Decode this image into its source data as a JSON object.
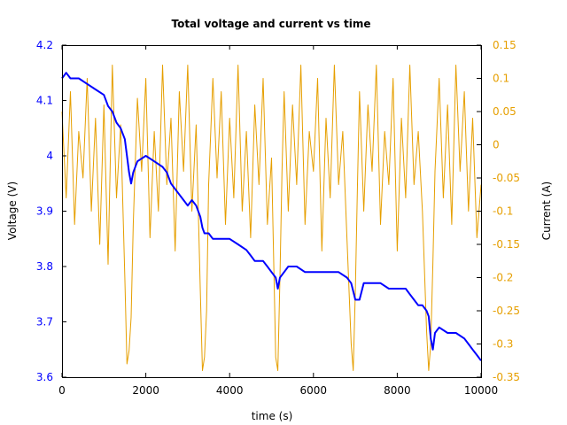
{
  "chart_data": {
    "type": "line",
    "title": "Total voltage and current vs time",
    "xlabel": "time (s)",
    "ylabel": "Voltage (V)",
    "y2label": "Current (A)",
    "xlim": [
      0,
      10000
    ],
    "ylim": [
      3.6,
      4.2
    ],
    "y2lim": [
      -0.35,
      0.15
    ],
    "x_ticks": [
      "0",
      "2000",
      "4000",
      "6000",
      "8000",
      "10000"
    ],
    "y_ticks": [
      "3.6",
      "3.7",
      "3.8",
      "3.9",
      "4",
      "4.1",
      "4.2"
    ],
    "y2_ticks": [
      "-0.35",
      "-0.3",
      "-0.25",
      "-0.2",
      "-0.15",
      "-0.1",
      "-0.05",
      "0",
      "0.05",
      "0.1",
      "0.15"
    ],
    "grid": false,
    "left_axis_color": "#0000ff",
    "right_axis_color": "#e69f00",
    "series": [
      {
        "axis": "left",
        "color": "#0000ff",
        "x": [
          0,
          100,
          200,
          400,
          600,
          800,
          1000,
          1100,
          1200,
          1300,
          1400,
          1500,
          1550,
          1600,
          1650,
          1700,
          1800,
          2000,
          2200,
          2400,
          2500,
          2600,
          2700,
          2800,
          2900,
          3000,
          3100,
          3200,
          3300,
          3350,
          3400,
          3500,
          3600,
          3800,
          4000,
          4200,
          4400,
          4500,
          4600,
          4800,
          4900,
          5000,
          5100,
          5150,
          5200,
          5300,
          5400,
          5600,
          5800,
          6000,
          6200,
          6400,
          6600,
          6800,
          6900,
          7000,
          7100,
          7200,
          7400,
          7600,
          7800,
          8000,
          8200,
          8300,
          8400,
          8500,
          8600,
          8700,
          8750,
          8800,
          8850,
          8900,
          9000,
          9200,
          9400,
          9600,
          9700,
          9800,
          9900,
          10000
        ],
        "y": [
          4.14,
          4.15,
          4.14,
          4.14,
          4.13,
          4.12,
          4.11,
          4.09,
          4.08,
          4.06,
          4.05,
          4.03,
          4.0,
          3.97,
          3.95,
          3.97,
          3.99,
          4.0,
          3.99,
          3.98,
          3.97,
          3.95,
          3.94,
          3.93,
          3.92,
          3.91,
          3.92,
          3.91,
          3.89,
          3.87,
          3.86,
          3.86,
          3.85,
          3.85,
          3.85,
          3.84,
          3.83,
          3.82,
          3.81,
          3.81,
          3.8,
          3.79,
          3.78,
          3.76,
          3.78,
          3.79,
          3.8,
          3.8,
          3.79,
          3.79,
          3.79,
          3.79,
          3.79,
          3.78,
          3.77,
          3.74,
          3.74,
          3.77,
          3.77,
          3.77,
          3.76,
          3.76,
          3.76,
          3.75,
          3.74,
          3.73,
          3.73,
          3.72,
          3.71,
          3.67,
          3.65,
          3.68,
          3.69,
          3.68,
          3.68,
          3.67,
          3.66,
          3.65,
          3.64,
          3.63
        ]
      },
      {
        "axis": "right",
        "color": "#e69f00",
        "x": [
          0,
          100,
          200,
          300,
          400,
          500,
          600,
          700,
          800,
          900,
          1000,
          1100,
          1200,
          1300,
          1400,
          1500,
          1550,
          1600,
          1650,
          1700,
          1800,
          1900,
          2000,
          2100,
          2200,
          2300,
          2400,
          2500,
          2600,
          2700,
          2800,
          2900,
          3000,
          3100,
          3200,
          3300,
          3350,
          3400,
          3450,
          3500,
          3600,
          3700,
          3800,
          3900,
          4000,
          4100,
          4200,
          4300,
          4400,
          4500,
          4600,
          4700,
          4800,
          4900,
          5000,
          5100,
          5150,
          5200,
          5250,
          5300,
          5400,
          5500,
          5600,
          5700,
          5800,
          5900,
          6000,
          6100,
          6200,
          6300,
          6400,
          6500,
          6600,
          6700,
          6800,
          6900,
          6950,
          7000,
          7050,
          7100,
          7200,
          7300,
          7400,
          7500,
          7600,
          7700,
          7800,
          7900,
          8000,
          8100,
          8200,
          8300,
          8400,
          8500,
          8600,
          8700,
          8750,
          8800,
          8850,
          8900,
          9000,
          9100,
          9200,
          9300,
          9400,
          9500,
          9600,
          9700,
          9800,
          9900,
          10000
        ],
        "y": [
          0.05,
          -0.08,
          0.08,
          -0.12,
          0.02,
          -0.05,
          0.1,
          -0.1,
          0.04,
          -0.15,
          0.06,
          -0.18,
          0.12,
          -0.08,
          0.03,
          -0.2,
          -0.33,
          -0.31,
          -0.26,
          -0.12,
          0.07,
          -0.04,
          0.1,
          -0.14,
          0.02,
          -0.1,
          0.12,
          -0.06,
          0.04,
          -0.16,
          0.08,
          -0.04,
          0.12,
          -0.1,
          0.03,
          -0.22,
          -0.34,
          -0.32,
          -0.25,
          -0.06,
          0.1,
          -0.05,
          0.08,
          -0.12,
          0.04,
          -0.08,
          0.12,
          -0.1,
          0.02,
          -0.14,
          0.06,
          -0.06,
          0.1,
          -0.12,
          -0.02,
          -0.32,
          -0.34,
          -0.2,
          -0.04,
          0.08,
          -0.1,
          0.06,
          -0.06,
          0.12,
          -0.12,
          0.02,
          -0.04,
          0.1,
          -0.16,
          0.04,
          -0.08,
          0.12,
          -0.06,
          0.02,
          -0.14,
          -0.3,
          -0.34,
          -0.22,
          -0.06,
          0.08,
          -0.1,
          0.06,
          -0.04,
          0.12,
          -0.12,
          0.02,
          -0.06,
          0.1,
          -0.16,
          0.04,
          -0.08,
          0.12,
          -0.06,
          0.02,
          -0.1,
          -0.28,
          -0.34,
          -0.3,
          -0.18,
          -0.04,
          0.1,
          -0.08,
          0.06,
          -0.12,
          0.12,
          -0.04,
          0.08,
          -0.1,
          0.04,
          -0.14,
          -0.06
        ]
      }
    ]
  }
}
